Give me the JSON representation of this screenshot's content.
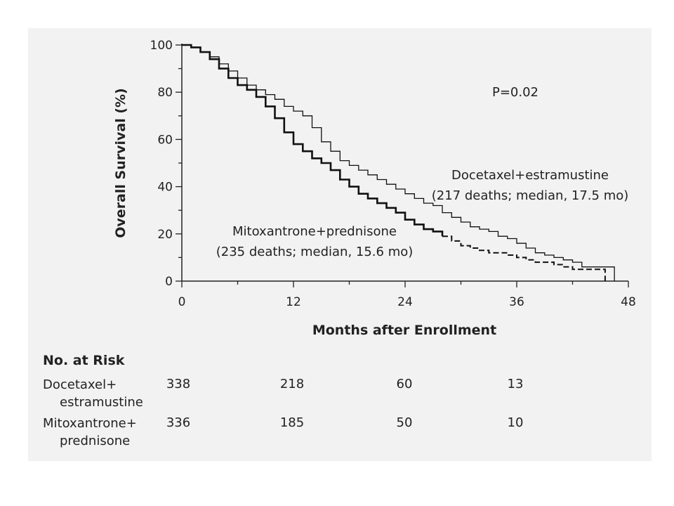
{
  "chart_data": {
    "type": "line",
    "xlabel": "Months after Enrollment",
    "ylabel": "Overall Survival (%)",
    "xlim": [
      0,
      48
    ],
    "ylim": [
      0,
      100
    ],
    "xticks": [
      0,
      12,
      24,
      36,
      48
    ],
    "yticks": [
      0,
      20,
      40,
      60,
      80,
      100
    ],
    "grid": false,
    "annotation": "P=0.02",
    "series": [
      {
        "name": "Docetaxel+estramustine",
        "label_line1": "Docetaxel+estramustine",
        "label_line2": "(217 deaths; median, 17.5 mo)",
        "line_style": "solid-thin",
        "x": [
          0,
          1,
          2,
          3,
          4,
          5,
          6,
          7,
          8,
          9,
          10,
          11,
          12,
          13,
          14,
          15,
          16,
          17,
          18,
          19,
          20,
          21,
          22,
          23,
          24,
          25,
          26,
          27,
          28,
          29,
          30,
          31,
          32,
          33,
          34,
          35,
          36,
          37,
          38,
          39,
          40,
          41,
          42,
          43,
          44,
          45,
          46,
          46.5
        ],
        "y": [
          100,
          99,
          97,
          95,
          92,
          89,
          86,
          83,
          81,
          79,
          77,
          74,
          72,
          70,
          65,
          59,
          55,
          51,
          49,
          47,
          45,
          43,
          41,
          39,
          37,
          35,
          33,
          32,
          29,
          27,
          25,
          23,
          22,
          21,
          19,
          18,
          16,
          14,
          12,
          11,
          10,
          9,
          8,
          6,
          6,
          6,
          6,
          0
        ]
      },
      {
        "name": "Mitoxantrone+prednisone",
        "label_line1": "Mitoxantrone+prednisone",
        "label_line2": "(235 deaths; median, 15.6 mo)",
        "line_style": "solid-thick-then-dashed",
        "x": [
          0,
          1,
          2,
          3,
          4,
          5,
          6,
          7,
          8,
          9,
          10,
          11,
          12,
          13,
          14,
          15,
          16,
          17,
          18,
          19,
          20,
          21,
          22,
          23,
          24,
          25,
          26,
          27,
          28,
          29,
          30,
          31,
          32,
          33,
          34,
          35,
          36,
          37,
          38,
          39,
          40,
          41,
          42,
          43,
          44,
          45,
          45.5
        ],
        "y": [
          100,
          99,
          97,
          94,
          90,
          86,
          83,
          81,
          78,
          74,
          69,
          63,
          58,
          55,
          52,
          50,
          47,
          43,
          40,
          37,
          35,
          33,
          31,
          29,
          26,
          24,
          22,
          21,
          19,
          17,
          15,
          14,
          13,
          12,
          12,
          11,
          10,
          9,
          8,
          8,
          7,
          6,
          5,
          5,
          5,
          5,
          0
        ]
      }
    ],
    "risk_table": {
      "title": "No. at Risk",
      "rows": [
        {
          "label_line1": "Docetaxel+",
          "label_line2": "estramustine",
          "values": [
            "338",
            "218",
            "60",
            "13"
          ]
        },
        {
          "label_line1": "Mitoxantrone+",
          "label_line2": "prednisone",
          "values": [
            "336",
            "185",
            "50",
            "10"
          ]
        }
      ]
    }
  }
}
